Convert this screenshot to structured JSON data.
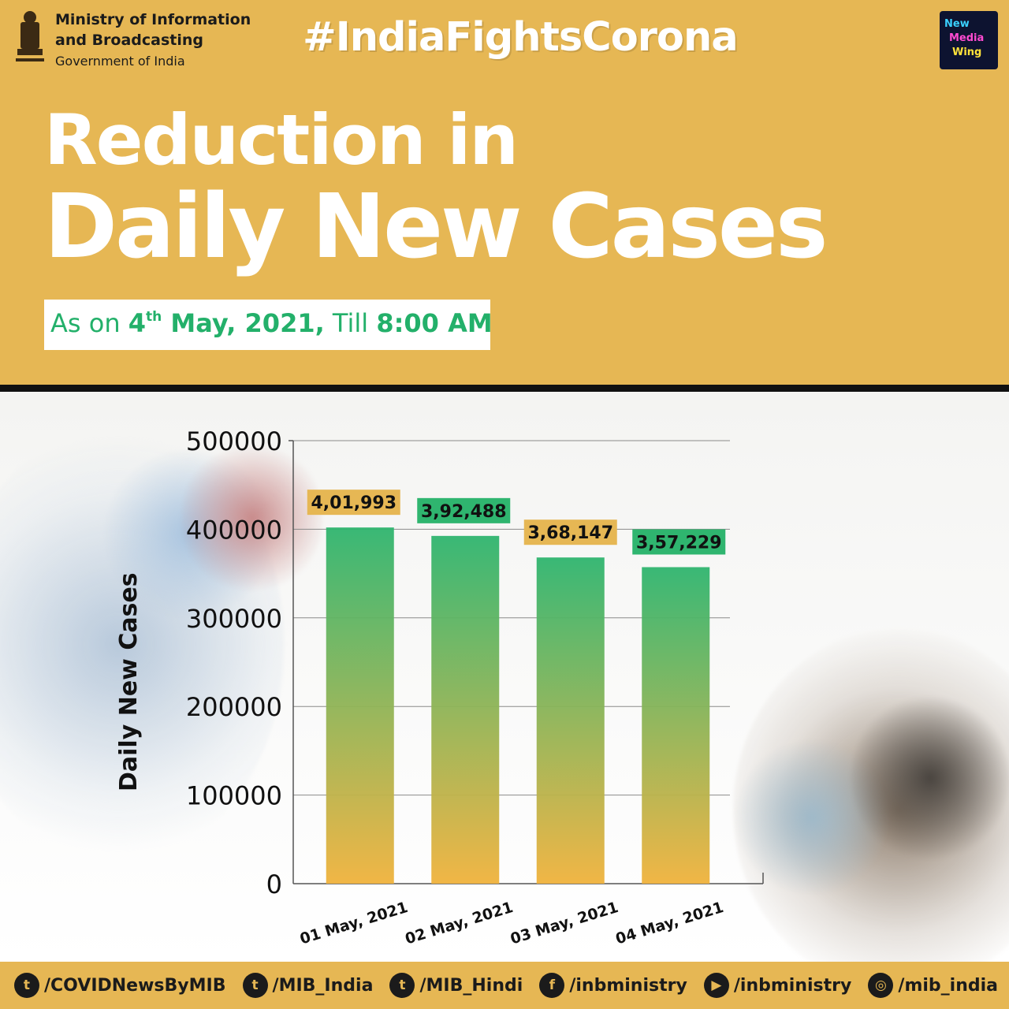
{
  "header": {
    "ministry_line1": "Ministry of Information",
    "ministry_line2": "and Broadcasting",
    "ministry_line3": "Government of India",
    "hashtag": "#IndiaFightsCorona",
    "logo_lines": [
      "New",
      "Media",
      "Wing"
    ],
    "title_line1": "Reduction in",
    "title_line2": "Daily New Cases",
    "asof_prefix": "As on ",
    "asof_day": "4",
    "asof_sup": "th",
    "asof_date": " May, 2021,",
    "asof_mid": " Till ",
    "asof_time": "8:00 AM"
  },
  "chart_data": {
    "type": "bar",
    "categories": [
      "01 May, 2021",
      "02 May, 2021",
      "03 May, 2021",
      "04 May, 2021"
    ],
    "values": [
      401993,
      392488,
      368147,
      357229
    ],
    "data_labels": [
      "4,01,993",
      "3,92,488",
      "3,68,147",
      "3,57,229"
    ],
    "label_colors": [
      "#e6b754",
      "#2fb56f",
      "#e6b754",
      "#2fb56f"
    ],
    "ylabel": "Daily New Cases",
    "xlabel": "",
    "ylim": [
      0,
      500000
    ],
    "yticks": [
      0,
      100000,
      200000,
      300000,
      400000,
      500000
    ],
    "ytick_labels": [
      "0",
      "100000",
      "200000",
      "300000",
      "400000",
      "500000"
    ],
    "grid": true,
    "bar_gradient": [
      "#2fb56f",
      "#f0b23c"
    ]
  },
  "footer": {
    "handles": [
      {
        "icon": "twitter-icon",
        "glyph": "t",
        "text": "/COVIDNewsByMIB"
      },
      {
        "icon": "twitter-icon",
        "glyph": "t",
        "text": "/MIB_India"
      },
      {
        "icon": "twitter-icon",
        "glyph": "t",
        "text": "/MIB_Hindi"
      },
      {
        "icon": "facebook-icon",
        "glyph": "f",
        "text": "/inbministry"
      },
      {
        "icon": "youtube-icon",
        "glyph": "▶",
        "text": "/inbministry"
      },
      {
        "icon": "instagram-icon",
        "glyph": "◎",
        "text": "/mib_india"
      }
    ]
  },
  "colors": {
    "header_bg": "#e6b754",
    "accent_green": "#23b06a",
    "divider": "#111111"
  }
}
